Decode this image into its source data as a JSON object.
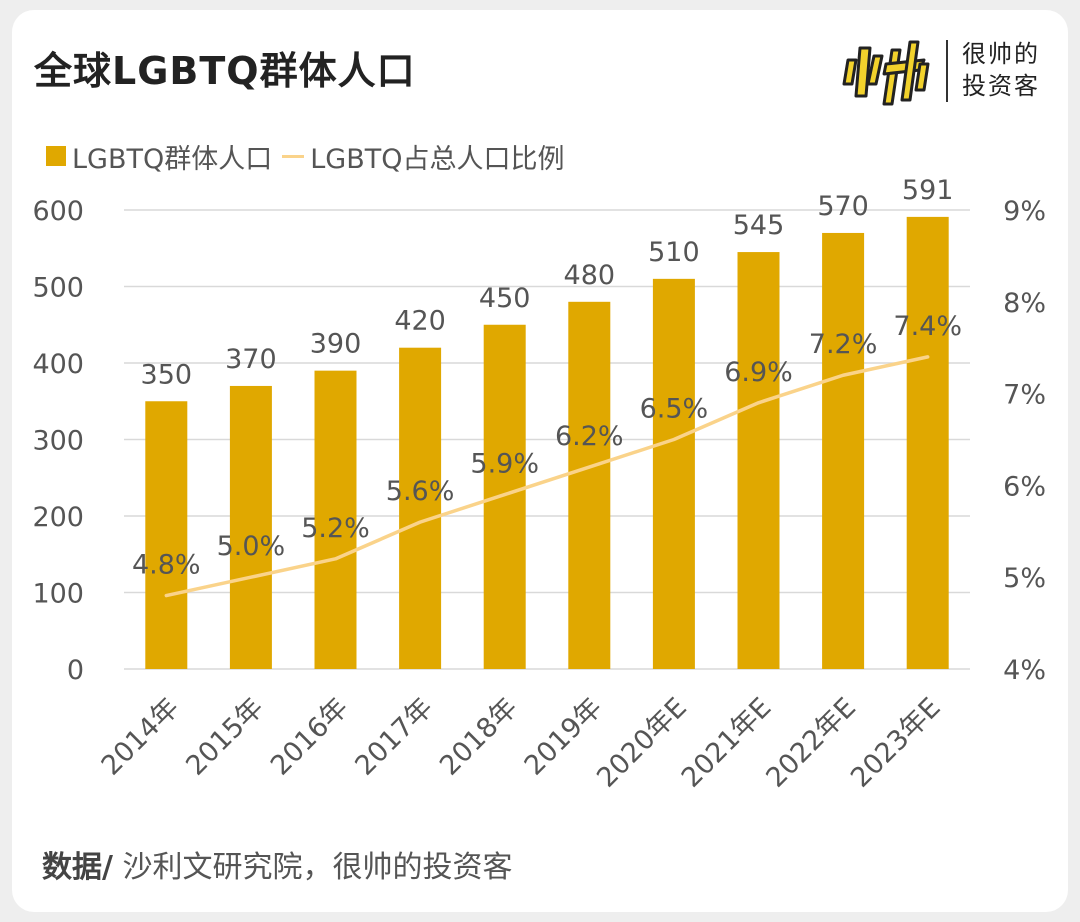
{
  "header": {
    "title": "全球LGBTQ群体人口"
  },
  "brand": {
    "logo_icon": "shuai-logo-icon",
    "line1": "很帅的",
    "line2": "投资客",
    "logo_color": "#f2d22c"
  },
  "legend": {
    "bar_label": "LGBTQ群体人口",
    "line_label": "LGBTQ占总人口比例"
  },
  "source": {
    "label": "数据/",
    "text": " 沙利文研究院，很帅的投资客"
  },
  "chart_data": {
    "type": "bar",
    "categories": [
      "2014年",
      "2015年",
      "2016年",
      "2017年",
      "2018年",
      "2019年",
      "2020年E",
      "2021年E",
      "2022年E",
      "2023年E"
    ],
    "series": [
      {
        "name": "LGBTQ群体人口",
        "type": "bar",
        "axis": "left",
        "values": [
          350,
          370,
          390,
          420,
          450,
          480,
          510,
          545,
          570,
          591
        ],
        "labels": [
          "350",
          "370",
          "390",
          "420",
          "450",
          "480",
          "510",
          "545",
          "570",
          "591"
        ],
        "color": "#e0a800"
      },
      {
        "name": "LGBTQ占总人口比例",
        "type": "line",
        "axis": "right",
        "values": [
          4.8,
          5.0,
          5.2,
          5.6,
          5.9,
          6.2,
          6.5,
          6.9,
          7.2,
          7.4
        ],
        "labels": [
          "4.8%",
          "5.0%",
          "5.2%",
          "5.6%",
          "5.9%",
          "6.2%",
          "6.5%",
          "6.9%",
          "7.2%",
          "7.4%"
        ],
        "color": "#fad38a"
      }
    ],
    "y_left": {
      "min": 0,
      "max": 600,
      "ticks": [
        0,
        100,
        200,
        300,
        400,
        500,
        600
      ],
      "tick_labels": [
        "0",
        "100",
        "200",
        "300",
        "400",
        "500",
        "600"
      ]
    },
    "y_right": {
      "min": 4,
      "max": 9,
      "ticks": [
        4,
        5,
        6,
        7,
        8,
        9
      ],
      "tick_labels": [
        "4%",
        "5%",
        "6%",
        "7%",
        "8%",
        "9%"
      ]
    },
    "grid": true,
    "legend_position": "top-left",
    "title": "",
    "xlabel": "",
    "ylabel": ""
  }
}
